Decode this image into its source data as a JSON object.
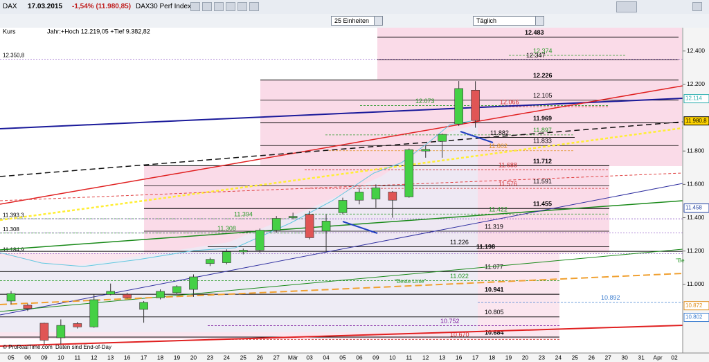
{
  "header": {
    "symbol": "DAX",
    "date": "17.03.2015",
    "change": "-1,54% (11.980,85)",
    "name": "DAX30 Perf Index",
    "units": "25 Einheiten",
    "period": "Täglich"
  },
  "chart_data": {
    "type": "candlestick",
    "panel_label": "Kurs",
    "info": "Jahr:+Hoch 12.219,05 +Tief 9.382,82",
    "footer": [
      "© ProRealTime.com",
      "Daten sind End-of-Day"
    ],
    "categories": [
      "05",
      "06",
      "09",
      "10",
      "11",
      "12",
      "13",
      "16",
      "17",
      "18",
      "19",
      "20",
      "23",
      "24",
      "25",
      "26",
      "27",
      "Mär",
      "03",
      "04",
      "05",
      "06",
      "09",
      "10",
      "11",
      "12",
      "13",
      "16",
      "17",
      "18",
      "19",
      "20",
      "23",
      "24",
      "25",
      "26",
      "27",
      "30",
      "31",
      "Apr",
      "02"
    ],
    "open": [
      10900,
      10875,
      10767,
      10680,
      10765,
      10745,
      10940,
      10940,
      10850,
      10920,
      10950,
      10970,
      11125,
      11130,
      11195,
      11205,
      11325,
      11400,
      11420,
      11320,
      11430,
      11505,
      11512,
      11554,
      11525,
      11800,
      11858,
      11962,
      12165,
      null,
      null,
      null,
      null,
      null,
      null,
      null,
      null,
      null,
      null,
      null,
      null
    ],
    "high": [
      10960,
      10885,
      10770,
      10790,
      10775,
      10940,
      11005,
      10950,
      10900,
      10970,
      10995,
      11060,
      11160,
      11210,
      11215,
      11335,
      11410,
      11430,
      11440,
      11420,
      11520,
      11580,
      11600,
      11560,
      11815,
      11830,
      11905,
      12220,
      12219,
      null,
      null,
      null,
      null,
      null,
      null,
      null,
      null,
      null,
      null,
      null,
      null
    ],
    "low": [
      10880,
      10840,
      10640,
      10640,
      10735,
      10740,
      10935,
      10915,
      10770,
      10910,
      10940,
      10925,
      11110,
      11120,
      11180,
      11190,
      11310,
      11390,
      11270,
      11200,
      11420,
      11480,
      11460,
      11400,
      11520,
      11760,
      11760,
      11950,
      11940,
      null,
      null,
      null,
      null,
      null,
      null,
      null,
      null,
      null,
      null,
      null,
      null
    ],
    "close": [
      10945,
      10855,
      10665,
      10754,
      10745,
      10908,
      10958,
      10920,
      10892,
      10958,
      10987,
      11045,
      11150,
      11196,
      11205,
      11325,
      11396,
      11408,
      11280,
      11380,
      11504,
      11554,
      11579,
      11505,
      11808,
      11810,
      11900,
      12175,
      11983,
      null,
      null,
      null,
      null,
      null,
      null,
      null,
      null,
      null,
      null,
      null,
      null
    ],
    "up_color": "#45d045",
    "down_color": "#e05555",
    "ylim": [
      10580,
      12540
    ],
    "yticks": [
      {
        "value": 12400,
        "label": "12.400"
      },
      {
        "value": 12200,
        "label": "12.200"
      },
      {
        "value": 11800,
        "label": "11.800"
      },
      {
        "value": 11600,
        "label": "11.600"
      },
      {
        "value": 11400,
        "label": "11.400"
      },
      {
        "value": 11200,
        "label": "11.200"
      },
      {
        "value": 11000,
        "label": "11.000"
      }
    ],
    "levels": [
      {
        "label": "12.483",
        "value": 12483,
        "color": "#000000",
        "bold": true
      },
      {
        "label": "12.374",
        "value": 12374,
        "color": "#2a9a2a",
        "bold": false
      },
      {
        "label": "12.347",
        "value": 12347,
        "color": "#000000",
        "bold": false
      },
      {
        "label": "12.226",
        "value": 12226,
        "color": "#000000",
        "bold": true
      },
      {
        "label": "12.105",
        "value": 12105,
        "color": "#000000",
        "bold": false
      },
      {
        "label": "12.073",
        "value": 12073,
        "color": "#2a9a2a",
        "bold": false
      },
      {
        "label": "12.066",
        "value": 12066,
        "color": "#d03030",
        "bold": false
      },
      {
        "label": "11.969",
        "value": 11969,
        "color": "#000000",
        "bold": true
      },
      {
        "label": "11.897",
        "value": 11897,
        "color": "#2a9a2a",
        "bold": false
      },
      {
        "label": "11.882",
        "value": 11882,
        "color": "#000000",
        "bold": false
      },
      {
        "label": "11.833",
        "value": 11833,
        "color": "#000000",
        "bold": false
      },
      {
        "label": "11.802",
        "value": 11802,
        "color": "#e09020",
        "bold": false
      },
      {
        "label": "11.712",
        "value": 11712,
        "color": "#000000",
        "bold": true
      },
      {
        "label": "11.688",
        "value": 11688,
        "color": "#d03030",
        "bold": false
      },
      {
        "label": "11.591",
        "value": 11591,
        "color": "#000000",
        "bold": false
      },
      {
        "label": "11.576",
        "value": 11576,
        "color": "#d03030",
        "bold": false
      },
      {
        "label": "11.455",
        "value": 11455,
        "color": "#000000",
        "bold": true
      },
      {
        "label": "11.422",
        "value": 11422,
        "color": "#2a9a2a",
        "bold": false
      },
      {
        "label": "11.394",
        "value": 11394,
        "color": "#2a9a2a",
        "bold": false
      },
      {
        "label": "11.319",
        "value": 11319,
        "color": "#000000",
        "bold": false
      },
      {
        "label": "11.308",
        "value": 11308,
        "color": "#2a9a2a",
        "bold": false
      },
      {
        "label": "11.226",
        "value": 11226,
        "color": "#000000",
        "bold": false
      },
      {
        "label": "11.198",
        "value": 11198,
        "color": "#000000",
        "bold": true
      },
      {
        "label": "11.077",
        "value": 11077,
        "color": "#000000",
        "bold": false
      },
      {
        "label": "11.022",
        "value": 11022,
        "color": "#2a9a2a",
        "bold": false
      },
      {
        "label": "10.941",
        "value": 10941,
        "color": "#000000",
        "bold": true
      },
      {
        "label": "10.892",
        "value": 10892,
        "color": "#4080d0",
        "bold": false
      },
      {
        "label": "10.805",
        "value": 10805,
        "color": "#000000",
        "bold": false
      },
      {
        "label": "10.752",
        "value": 10752,
        "color": "#8020a0",
        "bold": false
      },
      {
        "label": "10.684",
        "value": 10684,
        "color": "#000000",
        "bold": true
      },
      {
        "label": "10.670",
        "value": 10670,
        "color": "#d03030",
        "bold": false
      }
    ],
    "left_levels": [
      {
        "value": 12350.8,
        "label": "12.350,8"
      },
      {
        "value": 11393.3,
        "label": "11.393,3"
      },
      {
        "value": 11308,
        "label": "11.308"
      },
      {
        "value": 11184.9,
        "label": "11.184,9"
      }
    ],
    "price_boxes": [
      {
        "value": 12114,
        "label": "12.114",
        "color": "#30b0b0"
      },
      {
        "value": 11980.8,
        "label": "11.980,8",
        "color": "#000000"
      },
      {
        "value": 11458,
        "label": "11.458",
        "color": "#2040a0"
      },
      {
        "value": 10872,
        "label": "10.872",
        "color": "#e09020"
      },
      {
        "value": 10802,
        "label": "10.802",
        "color": "#4080d0"
      }
    ],
    "annotations": [
      "\"Beste Linie\"",
      "\"Be"
    ]
  }
}
